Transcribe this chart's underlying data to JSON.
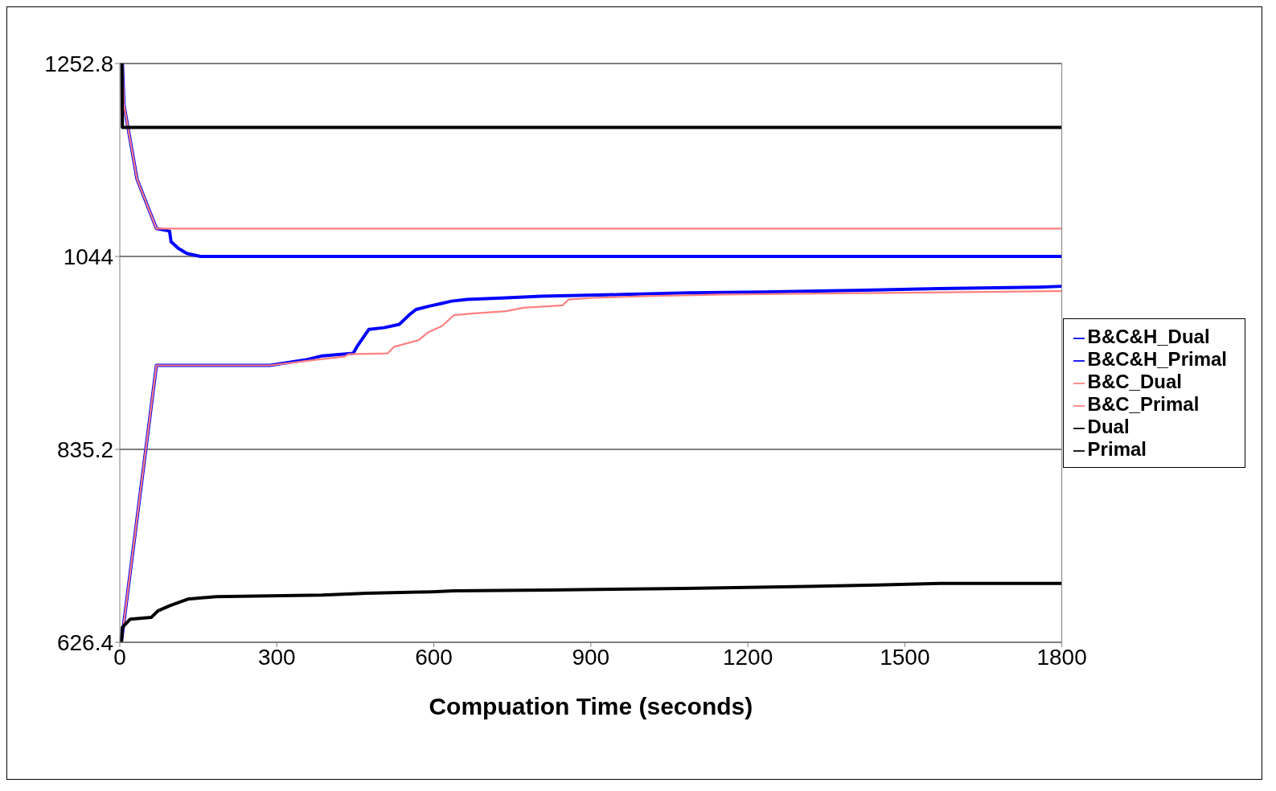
{
  "chart_data": {
    "type": "line",
    "xlabel": "Compuation Time (seconds)",
    "xlim": [
      0,
      1800
    ],
    "xticks": [
      0,
      300,
      600,
      900,
      1200,
      1500,
      1800
    ],
    "ylim": [
      626.4,
      1252.8
    ],
    "yticks": [
      626.4,
      835.2,
      1044,
      1252.8
    ],
    "grid": "y",
    "legend": "right",
    "marker": "none",
    "line_style": "solid",
    "series": [
      {
        "name": "B&C&H_Dual",
        "color": "#0000ff",
        "x": [
          5,
          8,
          33,
          70,
          95,
          98,
          112,
          128,
          154,
          1800
        ],
        "values": [
          1252.8,
          1208,
          1127.4,
          1074.2,
          1071.5,
          1059.9,
          1052.7,
          1047.3,
          1044,
          1044
        ]
      },
      {
        "name": "B&C&H_Primal",
        "color": "#0000ff",
        "x": [
          3,
          70,
          287,
          354,
          387,
          446,
          454,
          476,
          505,
          534,
          554,
          566,
          591,
          613,
          634,
          663,
          738,
          805,
          963,
          1089,
          1230,
          1406,
          1564,
          1756,
          1800
        ],
        "values": [
          626.4,
          926.1,
          926.1,
          931.9,
          936.4,
          939.1,
          947.1,
          965.1,
          966.9,
          970.5,
          981.2,
          986.6,
          990.2,
          992.9,
          995.6,
          997.4,
          999.2,
          1001,
          1002.8,
          1004.6,
          1005.5,
          1007.3,
          1009.1,
          1010.8,
          1011.7
        ]
      },
      {
        "name": "B&C_Dual",
        "color": "#ff8080",
        "x": [
          5,
          8,
          33,
          70,
          1800
        ],
        "values": [
          1252.8,
          1208,
          1127.4,
          1074.2,
          1074.2
        ]
      },
      {
        "name": "B&C_Primal",
        "color": "#ff8080",
        "x": [
          3,
          70,
          287,
          371,
          429,
          437,
          512,
          524,
          571,
          588,
          616,
          638,
          671,
          738,
          771,
          846,
          858,
          905,
          1005,
          1155,
          1472,
          1800
        ],
        "values": [
          626.4,
          926.1,
          926.1,
          931.9,
          935.5,
          938.2,
          939.1,
          946.2,
          953.4,
          961.5,
          968.7,
          980.3,
          982.1,
          984.8,
          988.4,
          991.1,
          997.4,
          999.2,
          1001,
          1002.8,
          1004.6,
          1006.4
        ]
      },
      {
        "name": "Dual",
        "color": "#000000",
        "x": [
          4,
          5,
          1800
        ],
        "values": [
          1252.8,
          1183.7,
          1183.7
        ]
      },
      {
        "name": "Primal",
        "color": "#000000",
        "x": [
          3,
          5,
          20,
          60,
          73,
          95,
          117,
          130,
          184,
          387,
          471,
          596,
          638,
          818,
          1080,
          1269,
          1447,
          1568,
          1800
        ],
        "values": [
          626.4,
          642.6,
          651.5,
          653.3,
          660.5,
          665.9,
          670.4,
          673.1,
          675.8,
          677.6,
          679.4,
          681.1,
          682,
          682.9,
          684.7,
          686.5,
          688.3,
          690.1,
          690.1
        ]
      }
    ]
  }
}
